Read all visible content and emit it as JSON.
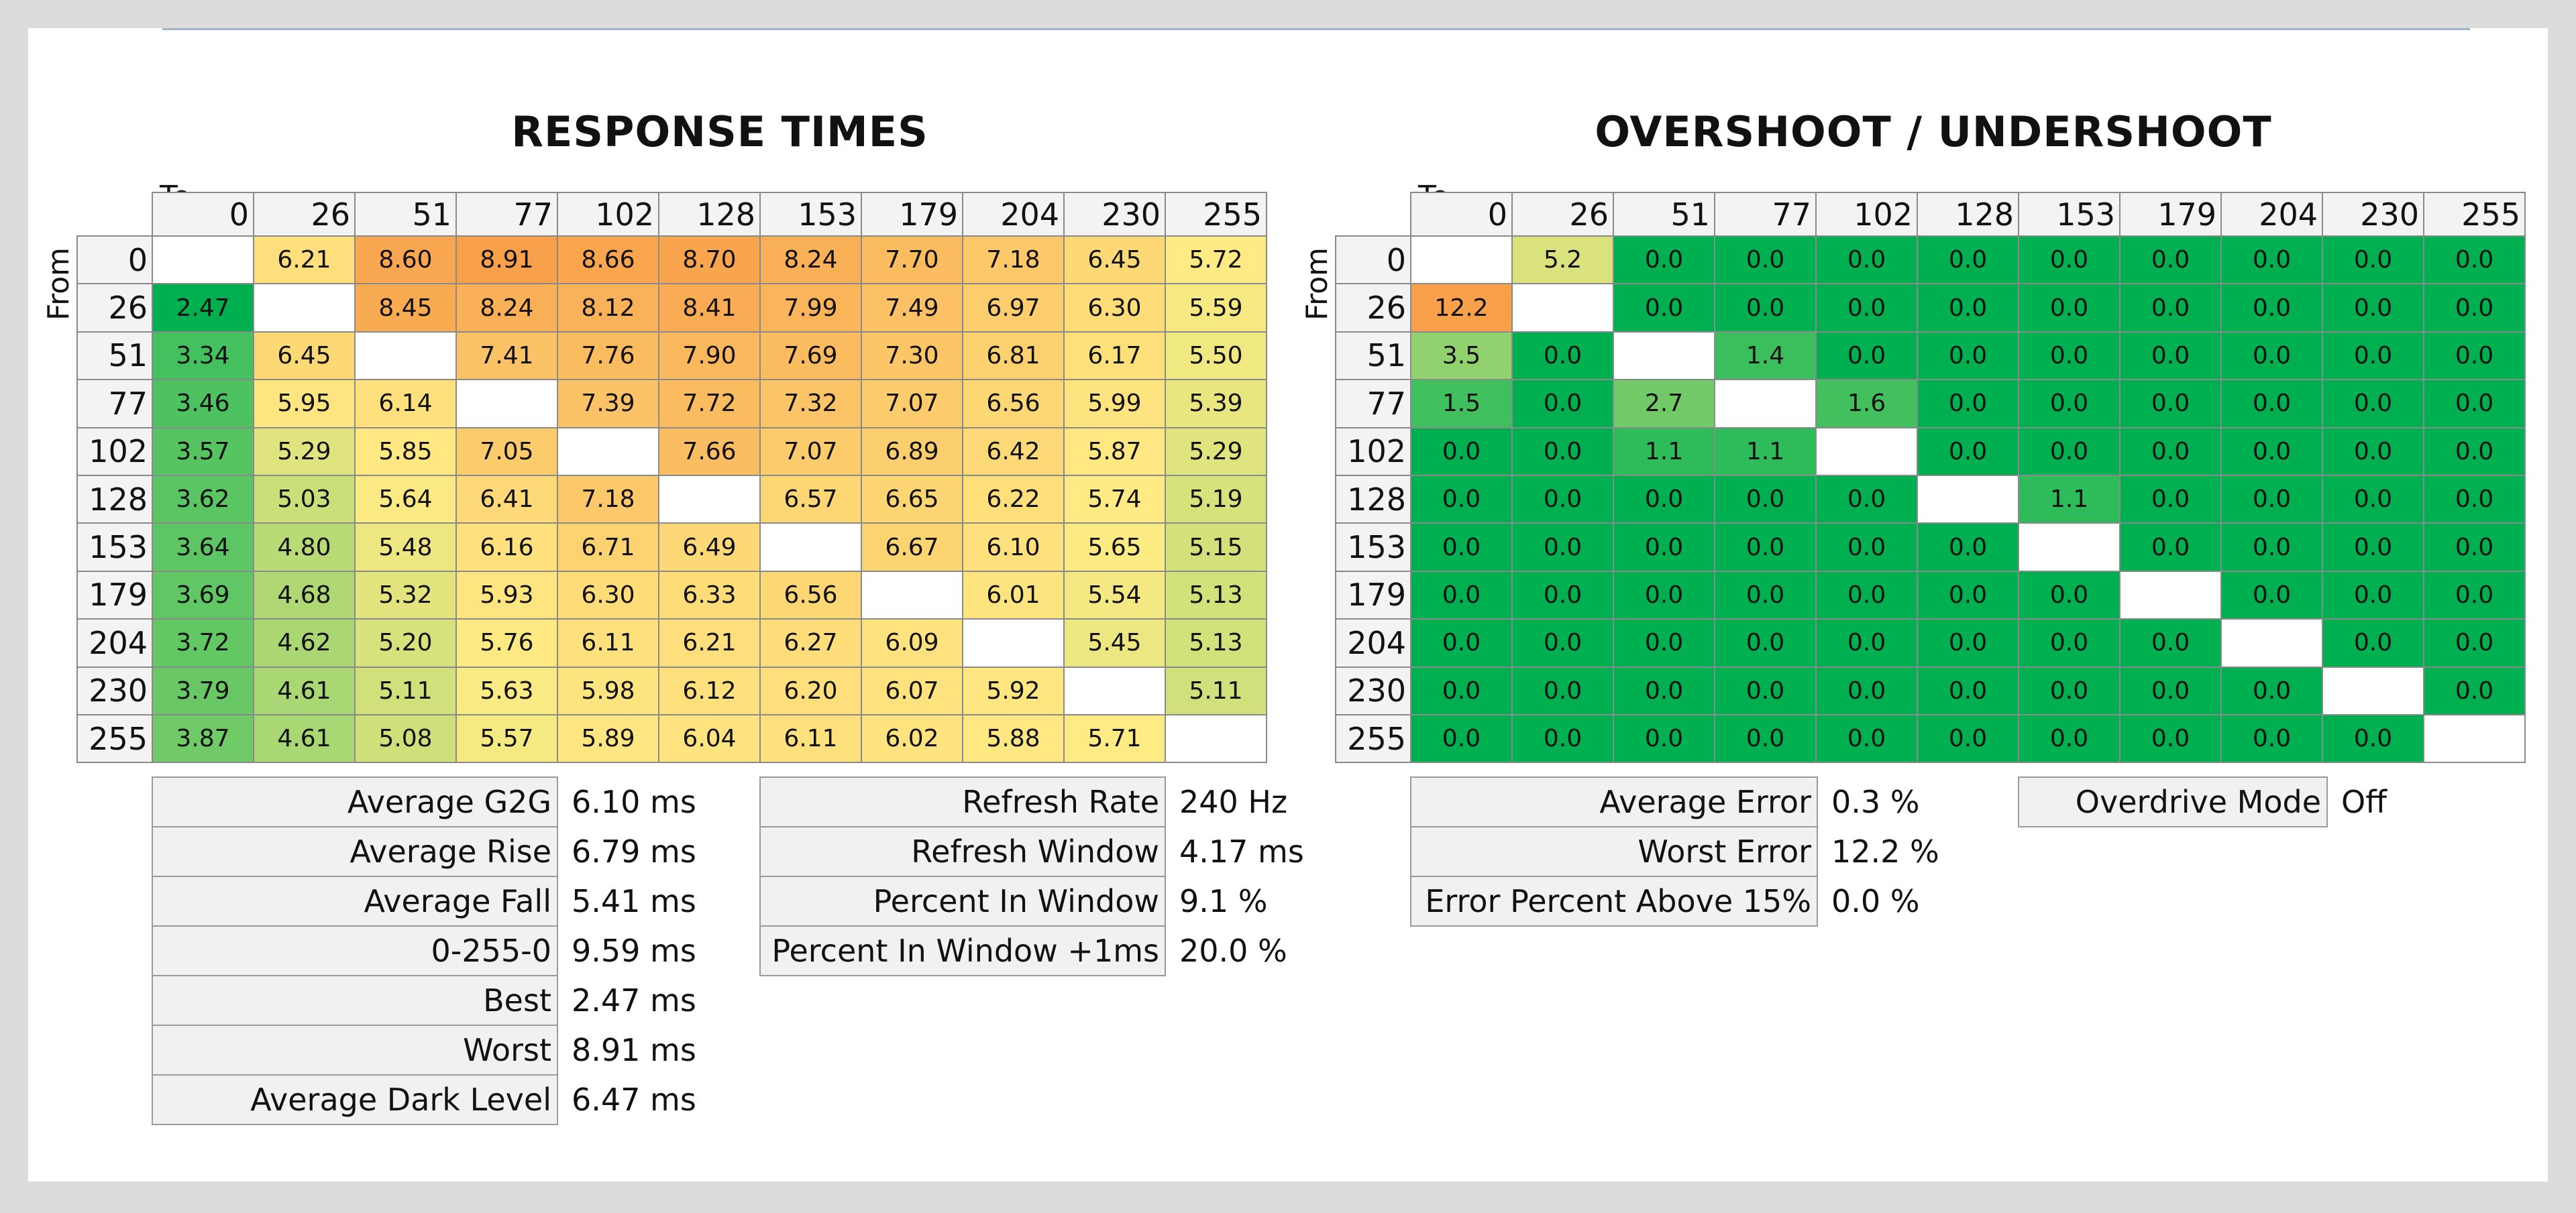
{
  "response_times": {
    "title": "RESPONSE TIMES",
    "to_label": "To",
    "from_label": "From"
  },
  "overshoot": {
    "title": "OVERSHOOT / UNDERSHOOT",
    "to_label": "To",
    "from_label": "From"
  },
  "rt_stats": [
    {
      "label": "Average G2G",
      "value": "6.10 ms"
    },
    {
      "label": "Average Rise",
      "value": "6.79 ms"
    },
    {
      "label": "Average Fall",
      "value": "5.41 ms"
    },
    {
      "label": "0-255-0",
      "value": "9.59 ms"
    },
    {
      "label": "Best",
      "value": "2.47 ms"
    },
    {
      "label": "Worst",
      "value": "8.91 ms"
    },
    {
      "label": "Average Dark Level",
      "value": "6.47 ms"
    }
  ],
  "refresh_stats": [
    {
      "label": "Refresh Rate",
      "value": "240 Hz"
    },
    {
      "label": "Refresh Window",
      "value": "4.17 ms"
    },
    {
      "label": "Percent In Window",
      "value": "9.1 %"
    },
    {
      "label": "Percent In Window +1ms",
      "value": "20.0 %"
    }
  ],
  "os_stats": [
    {
      "label": "Average Error",
      "value": "0.3 %"
    },
    {
      "label": "Worst Error",
      "value": "12.2 %"
    },
    {
      "label": "Error Percent Above 15%",
      "value": "0.0 %"
    }
  ],
  "overdrive_stats": [
    {
      "label": "Overdrive Mode",
      "value": "Off"
    }
  ],
  "colors": {
    "good": "#00b050",
    "mid": "#ffeb84",
    "bad": "#f8a04a",
    "neutral": "#ffffff"
  },
  "chart_data": [
    {
      "type": "heatmap",
      "title": "RESPONSE TIMES",
      "xlabel": "To",
      "ylabel": "From",
      "levels": [
        "0",
        "26",
        "51",
        "77",
        "102",
        "128",
        "153",
        "179",
        "204",
        "230",
        "255"
      ],
      "values": [
        [
          null,
          "6.21",
          "8.60",
          "8.91",
          "8.66",
          "8.70",
          "8.24",
          "7.70",
          "7.18",
          "6.45",
          "5.72"
        ],
        [
          "2.47",
          null,
          "8.45",
          "8.24",
          "8.12",
          "8.41",
          "7.99",
          "7.49",
          "6.97",
          "6.30",
          "5.59"
        ],
        [
          "3.34",
          "6.45",
          null,
          "7.41",
          "7.76",
          "7.90",
          "7.69",
          "7.30",
          "6.81",
          "6.17",
          "5.50"
        ],
        [
          "3.46",
          "5.95",
          "6.14",
          null,
          "7.39",
          "7.72",
          "7.32",
          "7.07",
          "6.56",
          "5.99",
          "5.39"
        ],
        [
          "3.57",
          "5.29",
          "5.85",
          "7.05",
          null,
          "7.66",
          "7.07",
          "6.89",
          "6.42",
          "5.87",
          "5.29"
        ],
        [
          "3.62",
          "5.03",
          "5.64",
          "6.41",
          "7.18",
          null,
          "6.57",
          "6.65",
          "6.22",
          "5.74",
          "5.19"
        ],
        [
          "3.64",
          "4.80",
          "5.48",
          "6.16",
          "6.71",
          "6.49",
          null,
          "6.67",
          "6.10",
          "5.65",
          "5.15"
        ],
        [
          "3.69",
          "4.68",
          "5.32",
          "5.93",
          "6.30",
          "6.33",
          "6.56",
          null,
          "6.01",
          "5.54",
          "5.13"
        ],
        [
          "3.72",
          "4.62",
          "5.20",
          "5.76",
          "6.11",
          "6.21",
          "6.27",
          "6.09",
          null,
          "5.45",
          "5.13"
        ],
        [
          "3.79",
          "4.61",
          "5.11",
          "5.63",
          "5.98",
          "6.12",
          "6.20",
          "6.07",
          "5.92",
          null,
          "5.11"
        ],
        [
          "3.87",
          "4.61",
          "5.08",
          "5.57",
          "5.89",
          "6.04",
          "6.11",
          "6.02",
          "5.88",
          "5.71",
          null
        ]
      ]
    },
    {
      "type": "heatmap",
      "title": "OVERSHOOT / UNDERSHOOT",
      "xlabel": "To",
      "ylabel": "From",
      "levels": [
        "0",
        "26",
        "51",
        "77",
        "102",
        "128",
        "153",
        "179",
        "204",
        "230",
        "255"
      ],
      "values": [
        [
          null,
          "5.2",
          "0.0",
          "0.0",
          "0.0",
          "0.0",
          "0.0",
          "0.0",
          "0.0",
          "0.0",
          "0.0"
        ],
        [
          "12.2",
          null,
          "0.0",
          "0.0",
          "0.0",
          "0.0",
          "0.0",
          "0.0",
          "0.0",
          "0.0",
          "0.0"
        ],
        [
          "3.5",
          "0.0",
          null,
          "1.4",
          "0.0",
          "0.0",
          "0.0",
          "0.0",
          "0.0",
          "0.0",
          "0.0"
        ],
        [
          "1.5",
          "0.0",
          "2.7",
          null,
          "1.6",
          "0.0",
          "0.0",
          "0.0",
          "0.0",
          "0.0",
          "0.0"
        ],
        [
          "0.0",
          "0.0",
          "1.1",
          "1.1",
          null,
          "0.0",
          "0.0",
          "0.0",
          "0.0",
          "0.0",
          "0.0"
        ],
        [
          "0.0",
          "0.0",
          "0.0",
          "0.0",
          "0.0",
          null,
          "1.1",
          "0.0",
          "0.0",
          "0.0",
          "0.0"
        ],
        [
          "0.0",
          "0.0",
          "0.0",
          "0.0",
          "0.0",
          "0.0",
          null,
          "0.0",
          "0.0",
          "0.0",
          "0.0"
        ],
        [
          "0.0",
          "0.0",
          "0.0",
          "0.0",
          "0.0",
          "0.0",
          "0.0",
          null,
          "0.0",
          "0.0",
          "0.0"
        ],
        [
          "0.0",
          "0.0",
          "0.0",
          "0.0",
          "0.0",
          "0.0",
          "0.0",
          "0.0",
          null,
          "0.0",
          "0.0"
        ],
        [
          "0.0",
          "0.0",
          "0.0",
          "0.0",
          "0.0",
          "0.0",
          "0.0",
          "0.0",
          "0.0",
          null,
          "0.0"
        ],
        [
          "0.0",
          "0.0",
          "0.0",
          "0.0",
          "0.0",
          "0.0",
          "0.0",
          "0.0",
          "0.0",
          "0.0",
          null
        ]
      ]
    }
  ]
}
